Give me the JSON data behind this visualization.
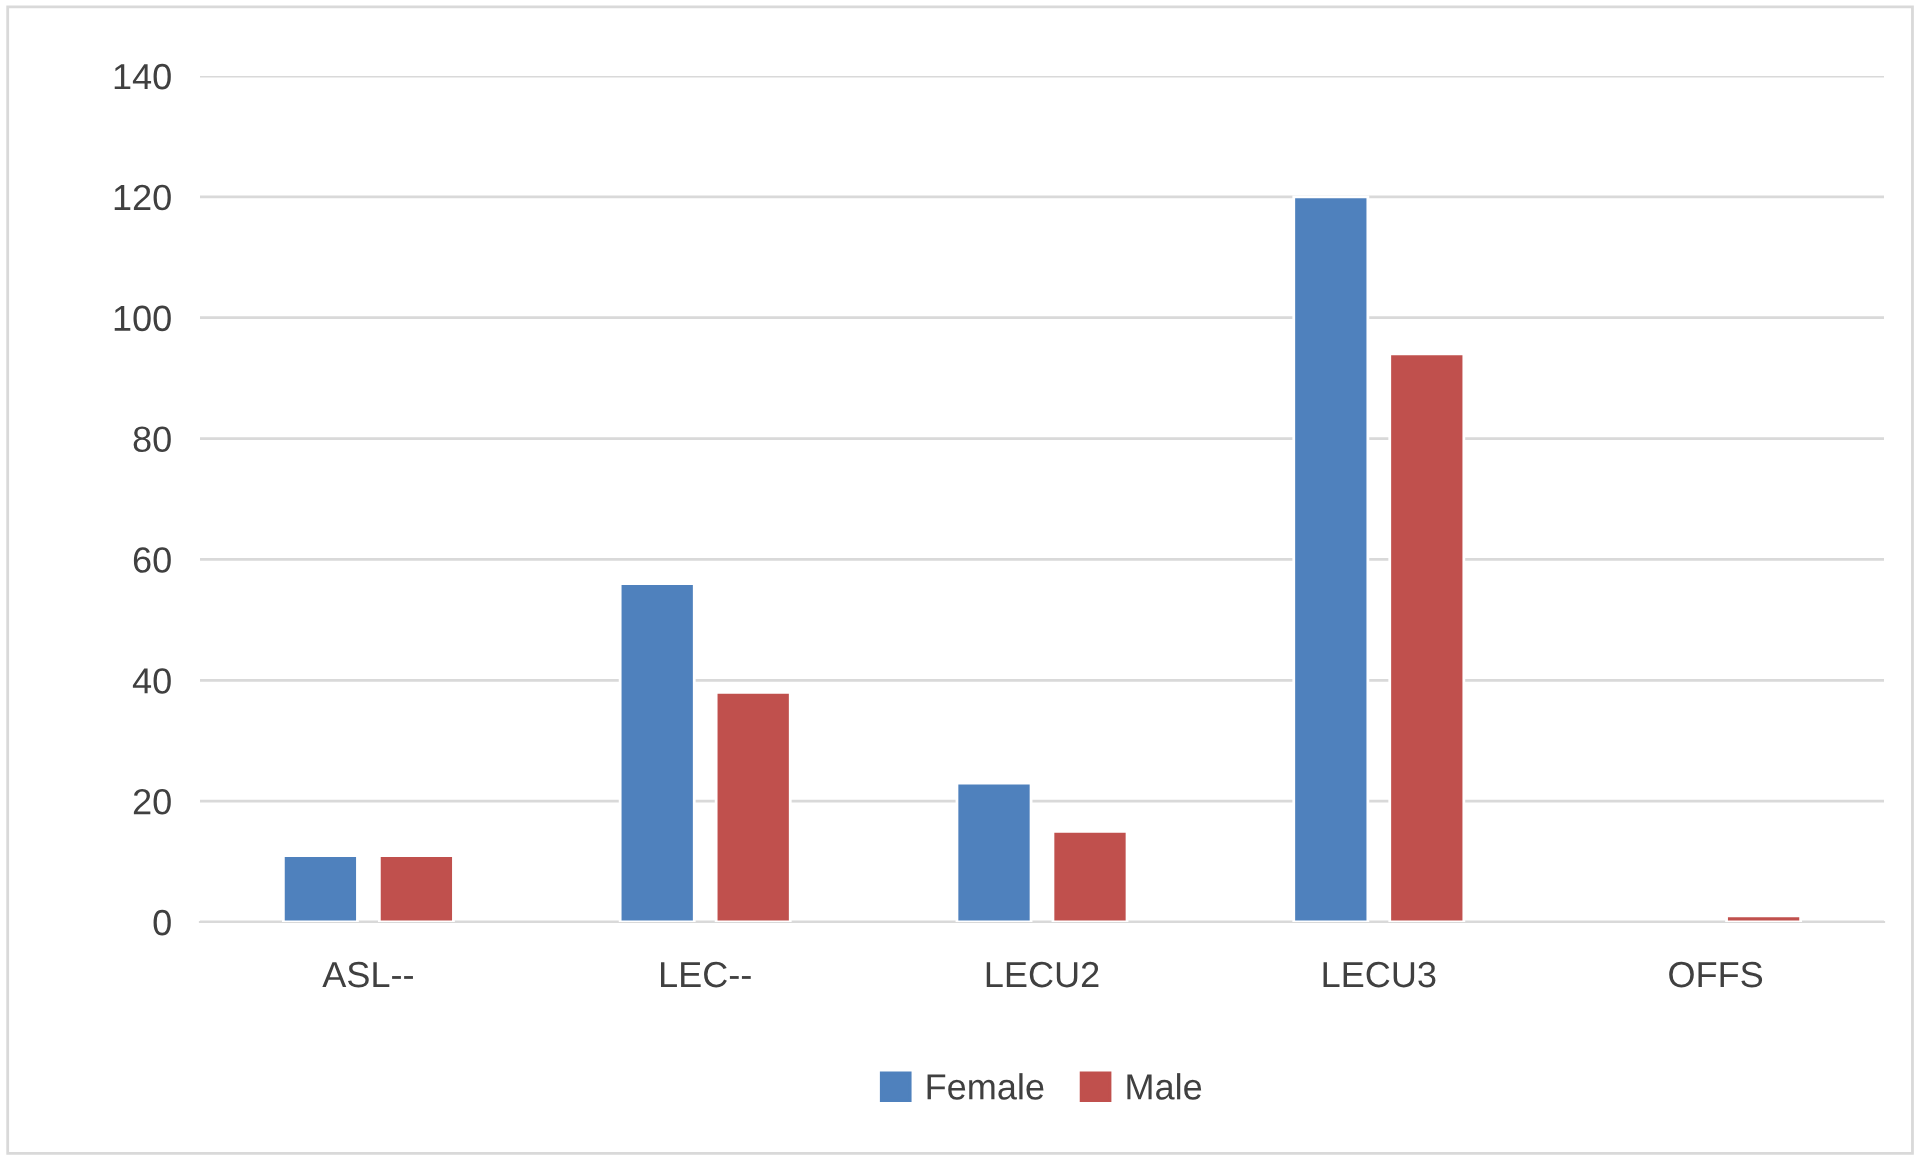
{
  "chart_data": {
    "type": "bar",
    "categories": [
      "ASL--",
      "LEC--",
      "LECU2",
      "LECU3",
      "OFFS"
    ],
    "series": [
      {
        "name": "Female",
        "color": "#4f81bd",
        "values": [
          11,
          56,
          23,
          120,
          null
        ]
      },
      {
        "name": "Male",
        "color": "#c0504d",
        "values": [
          11,
          38,
          15,
          94,
          1
        ]
      }
    ],
    "ylim": [
      0,
      140
    ],
    "yticks": [
      0,
      20,
      40,
      60,
      80,
      100,
      120,
      140
    ],
    "grid": "y",
    "legend": "bottom"
  }
}
